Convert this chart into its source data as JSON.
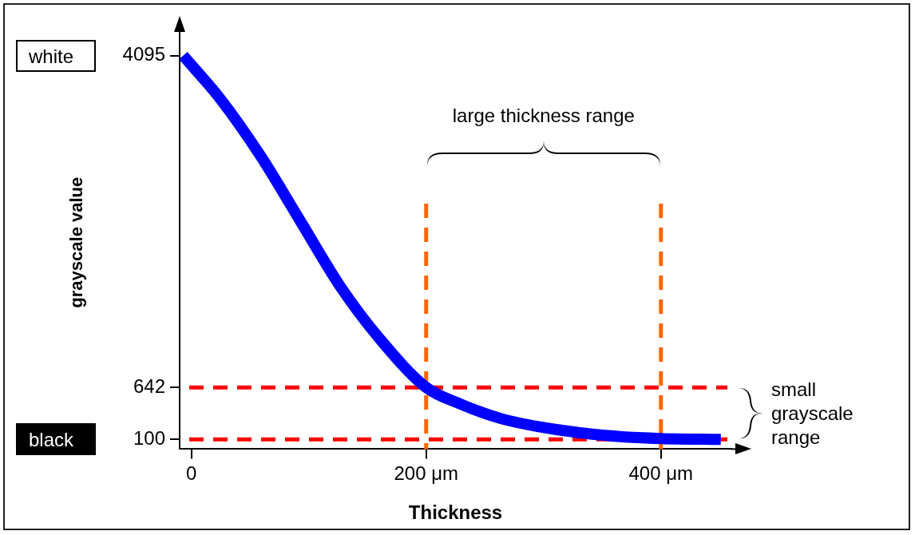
{
  "chart_data": {
    "type": "line",
    "xlabel": "Thickness",
    "ylabel": "grayscale value",
    "xlim": [
      -10,
      460
    ],
    "xticks": [
      0,
      {
        "value": 200,
        "label": "200 μm"
      },
      {
        "value": 400,
        "label": "400 μm"
      }
    ],
    "ylim": [
      0,
      4300
    ],
    "yticks": [
      100,
      642,
      4095
    ],
    "series": [
      {
        "color": "#0000ff",
        "x": [
          -7,
          25,
          59,
          93,
          127,
          161,
          200,
          229,
          263,
          297,
          331,
          365,
          400,
          451
        ],
        "values": [
          4095,
          3640,
          3050,
          2370,
          1690,
          1140,
          642,
          470,
          320,
          230,
          170,
          130,
          110,
          100
        ]
      }
    ],
    "ref_lines": [
      {
        "axis": "y",
        "value": 642,
        "color": "#ff0000",
        "line_style": "dashed"
      },
      {
        "axis": "y",
        "value": 100,
        "color": "#ff0000",
        "line_style": "dashed"
      },
      {
        "axis": "x",
        "value": 200,
        "color": "#ff6600",
        "line_style": "dashed"
      },
      {
        "axis": "x",
        "value": 400,
        "color": "#ff6600",
        "line_style": "dashed"
      }
    ],
    "annotations": [
      "white",
      "black",
      "large thickness range",
      "small grayscale range"
    ],
    "grid": false,
    "marker": "none",
    "line_style": "solid"
  }
}
